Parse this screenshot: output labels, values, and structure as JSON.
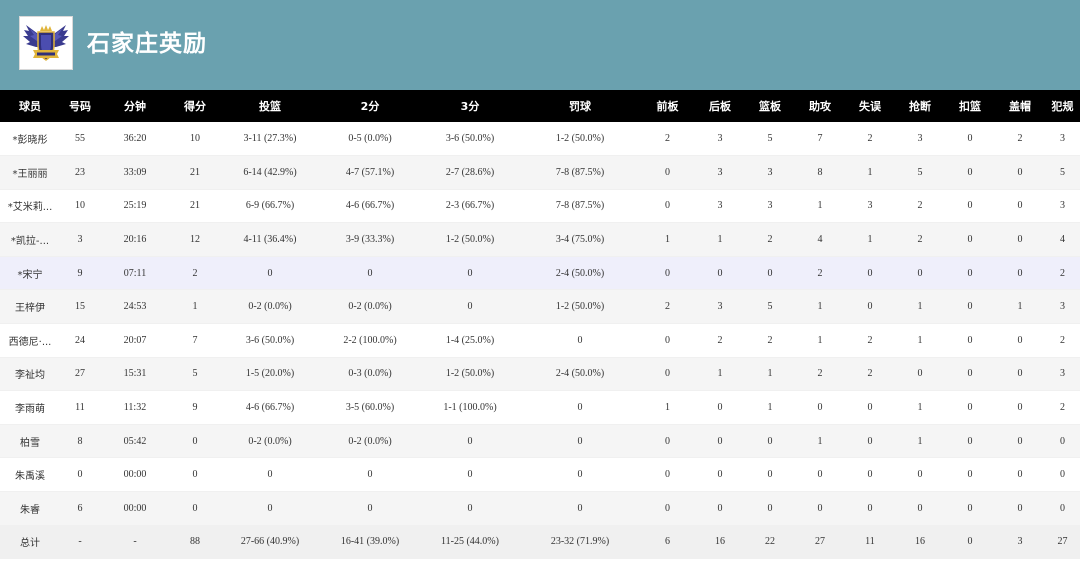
{
  "header": {
    "team_name": "石家庄英励",
    "logo_icon": "winged-crest-logo",
    "background_color": "#6aa1af"
  },
  "table": {
    "columns": [
      "球员",
      "号码",
      "分钟",
      "得分",
      "投篮",
      "2分",
      "3分",
      "罚球",
      "前板",
      "后板",
      "篮板",
      "助攻",
      "失误",
      "抢断",
      "扣篮",
      "盖帽",
      "犯规"
    ],
    "rows": [
      {
        "name": "*彭晓彤",
        "number": "55",
        "minutes": "36:20",
        "points": "10",
        "fg": "3-11 (27.3%)",
        "two": "0-5 (0.0%)",
        "three": "3-6 (50.0%)",
        "ft": "1-2 (50.0%)",
        "oreb": "2",
        "dreb": "3",
        "reb": "5",
        "ast": "7",
        "tov": "2",
        "stl": "3",
        "dunk": "0",
        "blk": "2",
        "pf": "3"
      },
      {
        "name": "*王丽丽",
        "number": "23",
        "minutes": "33:09",
        "points": "21",
        "fg": "6-14 (42.9%)",
        "two": "4-7 (57.1%)",
        "three": "2-7 (28.6%)",
        "ft": "7-8 (87.5%)",
        "oreb": "0",
        "dreb": "3",
        "reb": "3",
        "ast": "8",
        "tov": "1",
        "stl": "5",
        "dunk": "0",
        "blk": "0",
        "pf": "5"
      },
      {
        "name": "*艾米莉...",
        "number": "10",
        "minutes": "25:19",
        "points": "21",
        "fg": "6-9 (66.7%)",
        "two": "4-6 (66.7%)",
        "three": "2-3 (66.7%)",
        "ft": "7-8 (87.5%)",
        "oreb": "0",
        "dreb": "3",
        "reb": "3",
        "ast": "1",
        "tov": "3",
        "stl": "2",
        "dunk": "0",
        "blk": "0",
        "pf": "3"
      },
      {
        "name": "*凯拉-...",
        "number": "3",
        "minutes": "20:16",
        "points": "12",
        "fg": "4-11 (36.4%)",
        "two": "3-9 (33.3%)",
        "three": "1-2 (50.0%)",
        "ft": "3-4 (75.0%)",
        "oreb": "1",
        "dreb": "1",
        "reb": "2",
        "ast": "4",
        "tov": "1",
        "stl": "2",
        "dunk": "0",
        "blk": "0",
        "pf": "4"
      },
      {
        "name": "*宋宁",
        "number": "9",
        "minutes": "07:11",
        "points": "2",
        "fg": "0",
        "two": "0",
        "three": "0",
        "ft": "2-4 (50.0%)",
        "oreb": "0",
        "dreb": "0",
        "reb": "0",
        "ast": "2",
        "tov": "0",
        "stl": "0",
        "dunk": "0",
        "blk": "0",
        "pf": "2"
      },
      {
        "name": "王梓伊",
        "number": "15",
        "minutes": "24:53",
        "points": "1",
        "fg": "0-2 (0.0%)",
        "two": "0-2 (0.0%)",
        "three": "0",
        "ft": "1-2 (50.0%)",
        "oreb": "2",
        "dreb": "3",
        "reb": "5",
        "ast": "1",
        "tov": "0",
        "stl": "1",
        "dunk": "0",
        "blk": "1",
        "pf": "3"
      },
      {
        "name": "西德尼·...",
        "number": "24",
        "minutes": "20:07",
        "points": "7",
        "fg": "3-6 (50.0%)",
        "two": "2-2 (100.0%)",
        "three": "1-4 (25.0%)",
        "ft": "0",
        "oreb": "0",
        "dreb": "2",
        "reb": "2",
        "ast": "1",
        "tov": "2",
        "stl": "1",
        "dunk": "0",
        "blk": "0",
        "pf": "2"
      },
      {
        "name": "李祉均",
        "number": "27",
        "minutes": "15:31",
        "points": "5",
        "fg": "1-5 (20.0%)",
        "two": "0-3 (0.0%)",
        "three": "1-2 (50.0%)",
        "ft": "2-4 (50.0%)",
        "oreb": "0",
        "dreb": "1",
        "reb": "1",
        "ast": "2",
        "tov": "2",
        "stl": "0",
        "dunk": "0",
        "blk": "0",
        "pf": "3"
      },
      {
        "name": "李雨萌",
        "number": "11",
        "minutes": "11:32",
        "points": "9",
        "fg": "4-6 (66.7%)",
        "two": "3-5 (60.0%)",
        "three": "1-1 (100.0%)",
        "ft": "0",
        "oreb": "1",
        "dreb": "0",
        "reb": "1",
        "ast": "0",
        "tov": "0",
        "stl": "1",
        "dunk": "0",
        "blk": "0",
        "pf": "2"
      },
      {
        "name": "柏雪",
        "number": "8",
        "minutes": "05:42",
        "points": "0",
        "fg": "0-2 (0.0%)",
        "two": "0-2 (0.0%)",
        "three": "0",
        "ft": "0",
        "oreb": "0",
        "dreb": "0",
        "reb": "0",
        "ast": "1",
        "tov": "0",
        "stl": "1",
        "dunk": "0",
        "blk": "0",
        "pf": "0"
      },
      {
        "name": "朱禹溪",
        "number": "0",
        "minutes": "00:00",
        "points": "0",
        "fg": "0",
        "two": "0",
        "three": "0",
        "ft": "0",
        "oreb": "0",
        "dreb": "0",
        "reb": "0",
        "ast": "0",
        "tov": "0",
        "stl": "0",
        "dunk": "0",
        "blk": "0",
        "pf": "0"
      },
      {
        "name": "朱睿",
        "number": "6",
        "minutes": "00:00",
        "points": "0",
        "fg": "0",
        "two": "0",
        "three": "0",
        "ft": "0",
        "oreb": "0",
        "dreb": "0",
        "reb": "0",
        "ast": "0",
        "tov": "0",
        "stl": "0",
        "dunk": "0",
        "blk": "0",
        "pf": "0"
      },
      {
        "name": "总计",
        "number": "-",
        "minutes": "-",
        "points": "88",
        "fg": "27-66 (40.9%)",
        "two": "16-41 (39.0%)",
        "three": "11-25 (44.0%)",
        "ft": "23-32 (71.9%)",
        "oreb": "6",
        "dreb": "16",
        "reb": "22",
        "ast": "27",
        "tov": "11",
        "stl": "16",
        "dunk": "0",
        "blk": "3",
        "pf": "27"
      }
    ]
  }
}
